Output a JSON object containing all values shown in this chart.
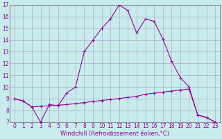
{
  "background_color": "#c8ecec",
  "grid_color": "#aaaacc",
  "line_color": "#990099",
  "hours": [
    0,
    1,
    2,
    3,
    4,
    5,
    6,
    7,
    8,
    9,
    10,
    11,
    12,
    13,
    14,
    15,
    16,
    17,
    18,
    19,
    20,
    21,
    22,
    23
  ],
  "temp": [
    9.0,
    8.8,
    8.3,
    7.0,
    8.5,
    8.4,
    9.5,
    10.0,
    13.0,
    14.0,
    15.0,
    15.8,
    17.0,
    16.5,
    14.6,
    15.8,
    15.6,
    14.1,
    12.2,
    10.8,
    10.0,
    7.6,
    7.4,
    7.0
  ],
  "windchill": [
    9.0,
    8.8,
    8.3,
    8.35,
    8.4,
    8.45,
    8.5,
    8.58,
    8.67,
    8.76,
    8.85,
    8.93,
    9.02,
    9.11,
    9.2,
    9.38,
    9.47,
    9.56,
    9.65,
    9.74,
    9.83,
    7.6,
    7.4,
    7.0
  ],
  "min_line": [
    7.0,
    7.0,
    7.0,
    7.0,
    7.0,
    7.0,
    7.0,
    7.0,
    7.0,
    7.0,
    7.0,
    7.0,
    7.0,
    7.0,
    7.0,
    7.0,
    7.0,
    7.0,
    7.0,
    7.0,
    7.0,
    7.0,
    7.0,
    7.0
  ],
  "ylim": [
    7,
    17
  ],
  "yticks": [
    7,
    8,
    9,
    10,
    11,
    12,
    13,
    14,
    15,
    16,
    17
  ],
  "xticks": [
    0,
    1,
    2,
    3,
    4,
    5,
    6,
    7,
    8,
    9,
    10,
    11,
    12,
    13,
    14,
    15,
    16,
    17,
    18,
    19,
    20,
    21,
    22,
    23
  ],
  "xlabel": "Windchill (Refroidissement éolien,°C)",
  "xlabel_fontsize": 6.0,
  "tick_fontsize": 5.5
}
